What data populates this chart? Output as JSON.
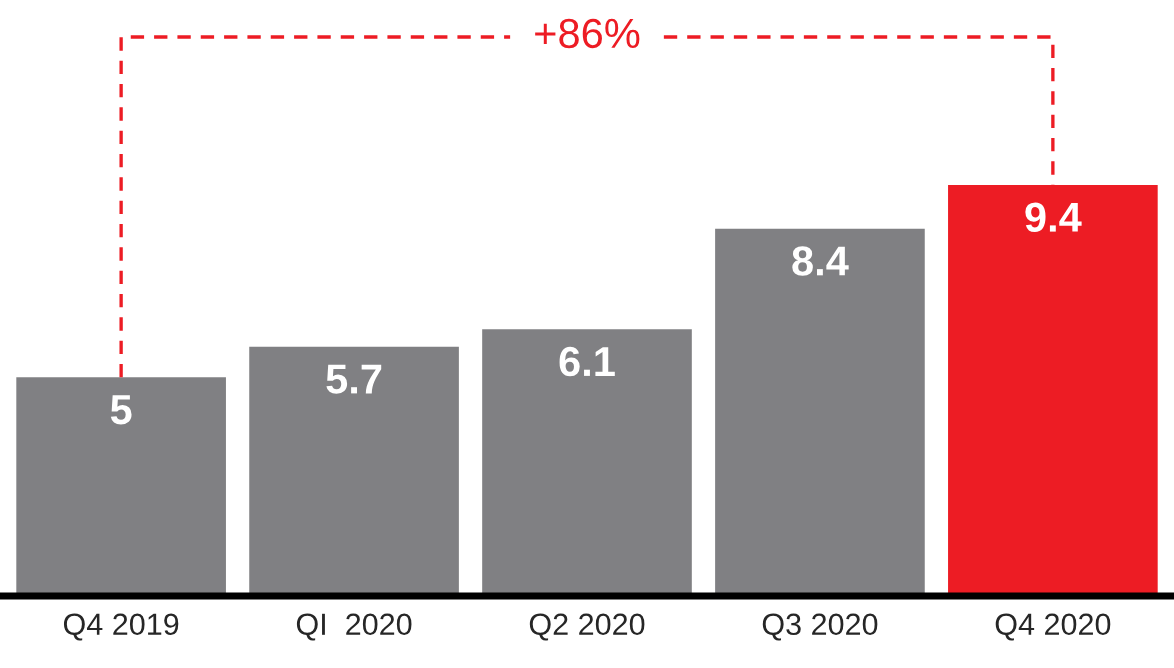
{
  "chart_data": {
    "type": "bar",
    "categories": [
      "Q4 2019",
      "QI  2020",
      "Q2 2020",
      "Q3 2020",
      "Q4 2020"
    ],
    "values": [
      5,
      5.7,
      6.1,
      8.4,
      9.4
    ],
    "colors": [
      "#808083",
      "#808083",
      "#808083",
      "#808083",
      "#ed1c24"
    ],
    "data_labels": true,
    "grid": false,
    "legend": false,
    "annotations": [
      "+86%"
    ]
  }
}
